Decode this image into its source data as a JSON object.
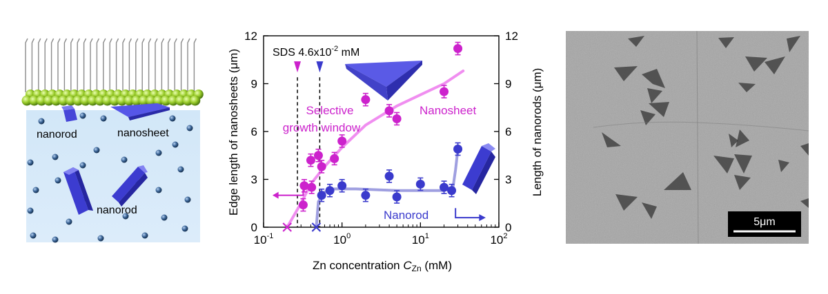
{
  "schematic": {
    "labels": {
      "nanorod_surface": "nanorod",
      "nanosheet": "nanosheet",
      "nanorod_solution": "nanorod"
    }
  },
  "chart_data": {
    "type": "scatter",
    "title": "",
    "xlabel_prefix": "Zn concentration ",
    "xlabel_symbol": "C",
    "xlabel_subscript": "Zn",
    "xlabel_suffix": " (mM)",
    "ylabel_left": "Edge length of nanosheets (μm)",
    "ylabel_right": "Length of nanorods (μm)",
    "x_scale": "log",
    "xlim": [
      0.1,
      100
    ],
    "ylim": [
      0,
      12
    ],
    "x_ticks": [
      {
        "base": "10",
        "exp": "-1"
      },
      {
        "base": "10",
        "exp": "0"
      },
      {
        "base": "10",
        "exp": "1"
      },
      {
        "base": "10",
        "exp": "2"
      }
    ],
    "y_ticks": [
      "0",
      "3",
      "6",
      "9",
      "12"
    ],
    "annotations": {
      "sds_text": "SDS 4.6x10",
      "sds_exp": "-2",
      "sds_unit": " mM",
      "selective_line1": "Selective",
      "selective_line2": "growth window",
      "nanosheet_label": "Nanosheet",
      "nanorod_label": "Nanorod"
    },
    "colors": {
      "nanosheet": "#cc22cc",
      "nanosheet_fit": "#f08ef0",
      "nanorod": "#3a3acc",
      "nanorod_fit": "#9f9fe0"
    },
    "vertical_markers": [
      0.27,
      0.52
    ],
    "zero_markers": [
      {
        "x": 0.2,
        "series": "nanosheet"
      },
      {
        "x": 0.47,
        "series": "nanorod"
      }
    ],
    "series": [
      {
        "key": "nanosheet",
        "points": [
          {
            "x": 0.32,
            "y": 1.4
          },
          {
            "x": 0.33,
            "y": 2.6
          },
          {
            "x": 0.4,
            "y": 4.2
          },
          {
            "x": 0.41,
            "y": 2.5
          },
          {
            "x": 0.5,
            "y": 4.5
          },
          {
            "x": 0.55,
            "y": 3.8
          },
          {
            "x": 0.8,
            "y": 4.3
          },
          {
            "x": 1.0,
            "y": 5.4
          },
          {
            "x": 2.0,
            "y": 8.0
          },
          {
            "x": 4.0,
            "y": 7.3
          },
          {
            "x": 5.0,
            "y": 6.8
          },
          {
            "x": 20,
            "y": 8.5
          },
          {
            "x": 30,
            "y": 11.2
          }
        ],
        "fit": [
          [
            0.2,
            0.0
          ],
          [
            0.3,
            1.5
          ],
          [
            0.4,
            2.7
          ],
          [
            0.6,
            3.8
          ],
          [
            1.0,
            5.0
          ],
          [
            2.0,
            6.4
          ],
          [
            5.0,
            7.6
          ],
          [
            10,
            8.3
          ],
          [
            20,
            9.0
          ],
          [
            35,
            9.8
          ]
        ]
      },
      {
        "key": "nanorod",
        "points": [
          {
            "x": 0.55,
            "y": 2.0
          },
          {
            "x": 0.7,
            "y": 2.3
          },
          {
            "x": 1.0,
            "y": 2.6
          },
          {
            "x": 2.0,
            "y": 2.0
          },
          {
            "x": 4.0,
            "y": 3.2
          },
          {
            "x": 5.0,
            "y": 1.9
          },
          {
            "x": 10,
            "y": 2.7
          },
          {
            "x": 20,
            "y": 2.5
          },
          {
            "x": 25,
            "y": 2.3
          },
          {
            "x": 30,
            "y": 4.9
          }
        ],
        "fit": [
          [
            0.47,
            0.0
          ],
          [
            0.5,
            1.6
          ],
          [
            0.6,
            2.2
          ],
          [
            0.8,
            2.4
          ],
          [
            1.5,
            2.4
          ],
          [
            5,
            2.3
          ],
          [
            20,
            2.3
          ],
          [
            26,
            2.5
          ],
          [
            28,
            3.6
          ],
          [
            30,
            4.9
          ]
        ]
      }
    ]
  },
  "micrograph": {
    "scale_bar_label": "5μm"
  }
}
